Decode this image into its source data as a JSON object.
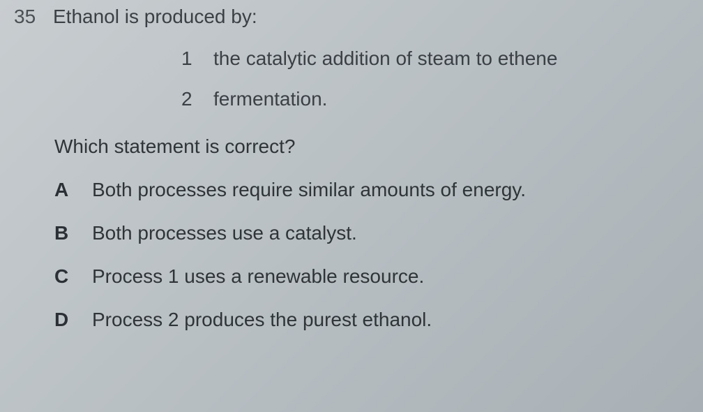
{
  "question": {
    "number": "35",
    "stem": "Ethanol is produced by:",
    "processes": [
      {
        "num": "1",
        "text": "the catalytic addition of steam to ethene"
      },
      {
        "num": "2",
        "text": "fermentation."
      }
    ],
    "sub_question": "Which statement is correct?",
    "options": [
      {
        "letter": "A",
        "text": "Both processes require similar amounts of energy."
      },
      {
        "letter": "B",
        "text": "Both processes use a catalyst."
      },
      {
        "letter": "C",
        "text": "Process 1 uses a renewable resource."
      },
      {
        "letter": "D",
        "text": "Process 2 produces the purest ethanol."
      }
    ]
  },
  "style": {
    "background_gradient": [
      "#c8cdd0",
      "#b8bfc3",
      "#a8b0b5"
    ],
    "text_color": "#2a2e32",
    "font_family": "Arial",
    "question_number_fontsize": 28,
    "stem_fontsize": 28,
    "process_fontsize": 28,
    "option_fontsize": 28,
    "option_letter_weight": 700,
    "line_spacing": 30
  }
}
